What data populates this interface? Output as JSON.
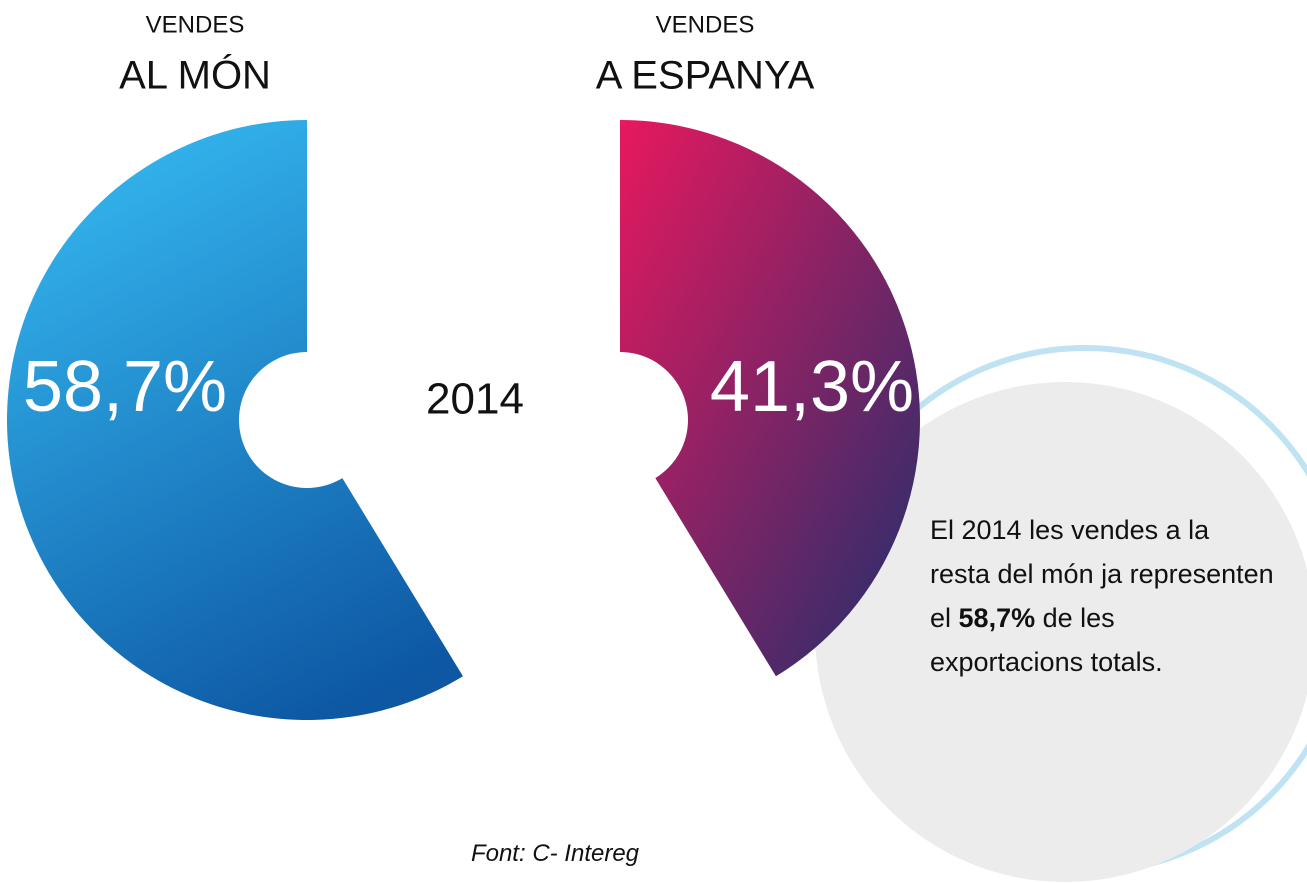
{
  "chart_data": {
    "type": "split-donut",
    "category_prefix": [
      "VENDES",
      "VENDES"
    ],
    "categories": [
      "AL MÓN",
      "A ESPANYA"
    ],
    "values": [
      58.7,
      41.3
    ],
    "value_labels": [
      "58,7%",
      "41,3%"
    ],
    "colors": [
      [
        "#34b6ee",
        "#0d57a3"
      ],
      [
        "#e8185e",
        "#1f2f6c"
      ]
    ],
    "center_label": "2014",
    "callout": {
      "before": "El 2014 les vendes a la resta del món ja representen el",
      "bold": "58,7%",
      "after": "de les exportacions totals."
    },
    "source": "Font: C- Intereg"
  }
}
